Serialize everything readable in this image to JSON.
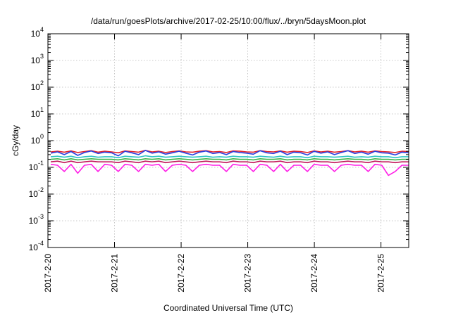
{
  "chart_data": {
    "type": "line",
    "title": "/data/run/goesPlots/archive/2017-02-25/10:00/flux/../bryn/5daysMoon.plot",
    "xlabel": "Coordinated Universal Time (UTC)",
    "ylabel": "cGy/day",
    "yscale": "log",
    "ylim": [
      0.0001,
      10000
    ],
    "y_ticks": [
      {
        "base": "10",
        "exp": "-4",
        "value": 0.0001
      },
      {
        "base": "10",
        "exp": "-3",
        "value": 0.001
      },
      {
        "base": "10",
        "exp": "-2",
        "value": 0.01
      },
      {
        "base": "10",
        "exp": "-1",
        "value": 0.1
      },
      {
        "base": "10",
        "exp": "0",
        "value": 1
      },
      {
        "base": "10",
        "exp": "1",
        "value": 10
      },
      {
        "base": "10",
        "exp": "2",
        "value": 100
      },
      {
        "base": "10",
        "exp": "3",
        "value": 1000
      },
      {
        "base": "10",
        "exp": "4",
        "value": 10000
      }
    ],
    "xlim": [
      "2017-02-20T00:00",
      "2017-02-25T10:00"
    ],
    "x_ticks": [
      {
        "label": "2017-2-20",
        "value": "2017-02-20T00:00"
      },
      {
        "label": "2017-2-21",
        "value": "2017-02-21T00:00"
      },
      {
        "label": "2017-2-22",
        "value": "2017-02-22T00:00"
      },
      {
        "label": "2017-2-23",
        "value": "2017-02-23T00:00"
      },
      {
        "label": "2017-2-24",
        "value": "2017-02-24T00:00"
      },
      {
        "label": "2017-2-25",
        "value": "2017-02-25T00:00"
      }
    ],
    "grid": true,
    "series": [
      {
        "color": "#e3232c",
        "values": [
          0.38,
          0.4,
          0.37,
          0.41,
          0.36,
          0.39,
          0.42,
          0.37,
          0.4,
          0.38,
          0.35,
          0.41,
          0.39,
          0.37,
          0.43,
          0.38,
          0.4,
          0.36,
          0.39,
          0.41,
          0.38,
          0.37,
          0.4,
          0.42,
          0.38,
          0.39,
          0.36,
          0.41,
          0.4,
          0.38,
          0.37,
          0.42,
          0.39,
          0.38,
          0.41,
          0.37,
          0.4,
          0.39,
          0.36,
          0.41,
          0.38,
          0.4,
          0.37,
          0.39,
          0.42,
          0.38,
          0.4,
          0.37,
          0.41,
          0.39,
          0.38,
          0.36,
          0.4,
          0.39
        ]
      },
      {
        "color": "#2a3fe0",
        "values": [
          0.34,
          0.38,
          0.3,
          0.39,
          0.28,
          0.36,
          0.41,
          0.33,
          0.37,
          0.35,
          0.27,
          0.4,
          0.35,
          0.3,
          0.43,
          0.34,
          0.38,
          0.31,
          0.35,
          0.4,
          0.34,
          0.29,
          0.37,
          0.41,
          0.33,
          0.36,
          0.3,
          0.39,
          0.36,
          0.34,
          0.31,
          0.42,
          0.35,
          0.33,
          0.4,
          0.3,
          0.37,
          0.35,
          0.29,
          0.4,
          0.34,
          0.38,
          0.3,
          0.36,
          0.42,
          0.33,
          0.37,
          0.31,
          0.4,
          0.35,
          0.34,
          0.29,
          0.37,
          0.35
        ]
      },
      {
        "color": "#2ec4c4",
        "values": [
          0.25,
          0.26,
          0.24,
          0.26,
          0.23,
          0.25,
          0.26,
          0.24,
          0.25,
          0.25,
          0.23,
          0.26,
          0.25,
          0.24,
          0.27,
          0.25,
          0.26,
          0.24,
          0.25,
          0.26,
          0.25,
          0.24,
          0.25,
          0.26,
          0.24,
          0.25,
          0.24,
          0.26,
          0.25,
          0.25,
          0.24,
          0.26,
          0.25,
          0.24,
          0.26,
          0.24,
          0.25,
          0.25,
          0.23,
          0.26,
          0.25,
          0.25,
          0.24,
          0.25,
          0.26,
          0.24,
          0.25,
          0.24,
          0.26,
          0.25,
          0.25,
          0.23,
          0.25,
          0.25
        ]
      },
      {
        "color": "#3cb54a",
        "values": [
          0.2,
          0.21,
          0.19,
          0.21,
          0.19,
          0.2,
          0.21,
          0.2,
          0.2,
          0.2,
          0.19,
          0.21,
          0.2,
          0.19,
          0.21,
          0.2,
          0.21,
          0.19,
          0.2,
          0.21,
          0.2,
          0.19,
          0.2,
          0.21,
          0.2,
          0.2,
          0.19,
          0.21,
          0.2,
          0.2,
          0.19,
          0.21,
          0.2,
          0.2,
          0.21,
          0.19,
          0.2,
          0.2,
          0.19,
          0.21,
          0.2,
          0.2,
          0.19,
          0.2,
          0.21,
          0.2,
          0.2,
          0.19,
          0.21,
          0.2,
          0.2,
          0.19,
          0.2,
          0.2
        ]
      },
      {
        "color": "#c2185b",
        "values": [
          0.16,
          0.17,
          0.15,
          0.17,
          0.15,
          0.16,
          0.17,
          0.16,
          0.16,
          0.16,
          0.15,
          0.17,
          0.16,
          0.15,
          0.17,
          0.16,
          0.17,
          0.15,
          0.16,
          0.17,
          0.16,
          0.15,
          0.16,
          0.17,
          0.16,
          0.16,
          0.15,
          0.17,
          0.16,
          0.16,
          0.15,
          0.17,
          0.16,
          0.16,
          0.17,
          0.15,
          0.16,
          0.16,
          0.15,
          0.17,
          0.16,
          0.16,
          0.15,
          0.16,
          0.17,
          0.16,
          0.16,
          0.15,
          0.17,
          0.16,
          0.16,
          0.15,
          0.16,
          0.16
        ]
      },
      {
        "color": "#ff1fe6",
        "values": [
          0.13,
          0.12,
          0.07,
          0.13,
          0.06,
          0.12,
          0.13,
          0.07,
          0.13,
          0.12,
          0.07,
          0.13,
          0.12,
          0.07,
          0.13,
          0.12,
          0.13,
          0.07,
          0.12,
          0.13,
          0.12,
          0.07,
          0.12,
          0.13,
          0.12,
          0.12,
          0.07,
          0.13,
          0.12,
          0.12,
          0.07,
          0.13,
          0.12,
          0.07,
          0.13,
          0.07,
          0.12,
          0.12,
          0.07,
          0.13,
          0.12,
          0.12,
          0.07,
          0.12,
          0.13,
          0.12,
          0.12,
          0.07,
          0.13,
          0.12,
          0.05,
          0.07,
          0.12,
          0.12
        ]
      }
    ]
  }
}
